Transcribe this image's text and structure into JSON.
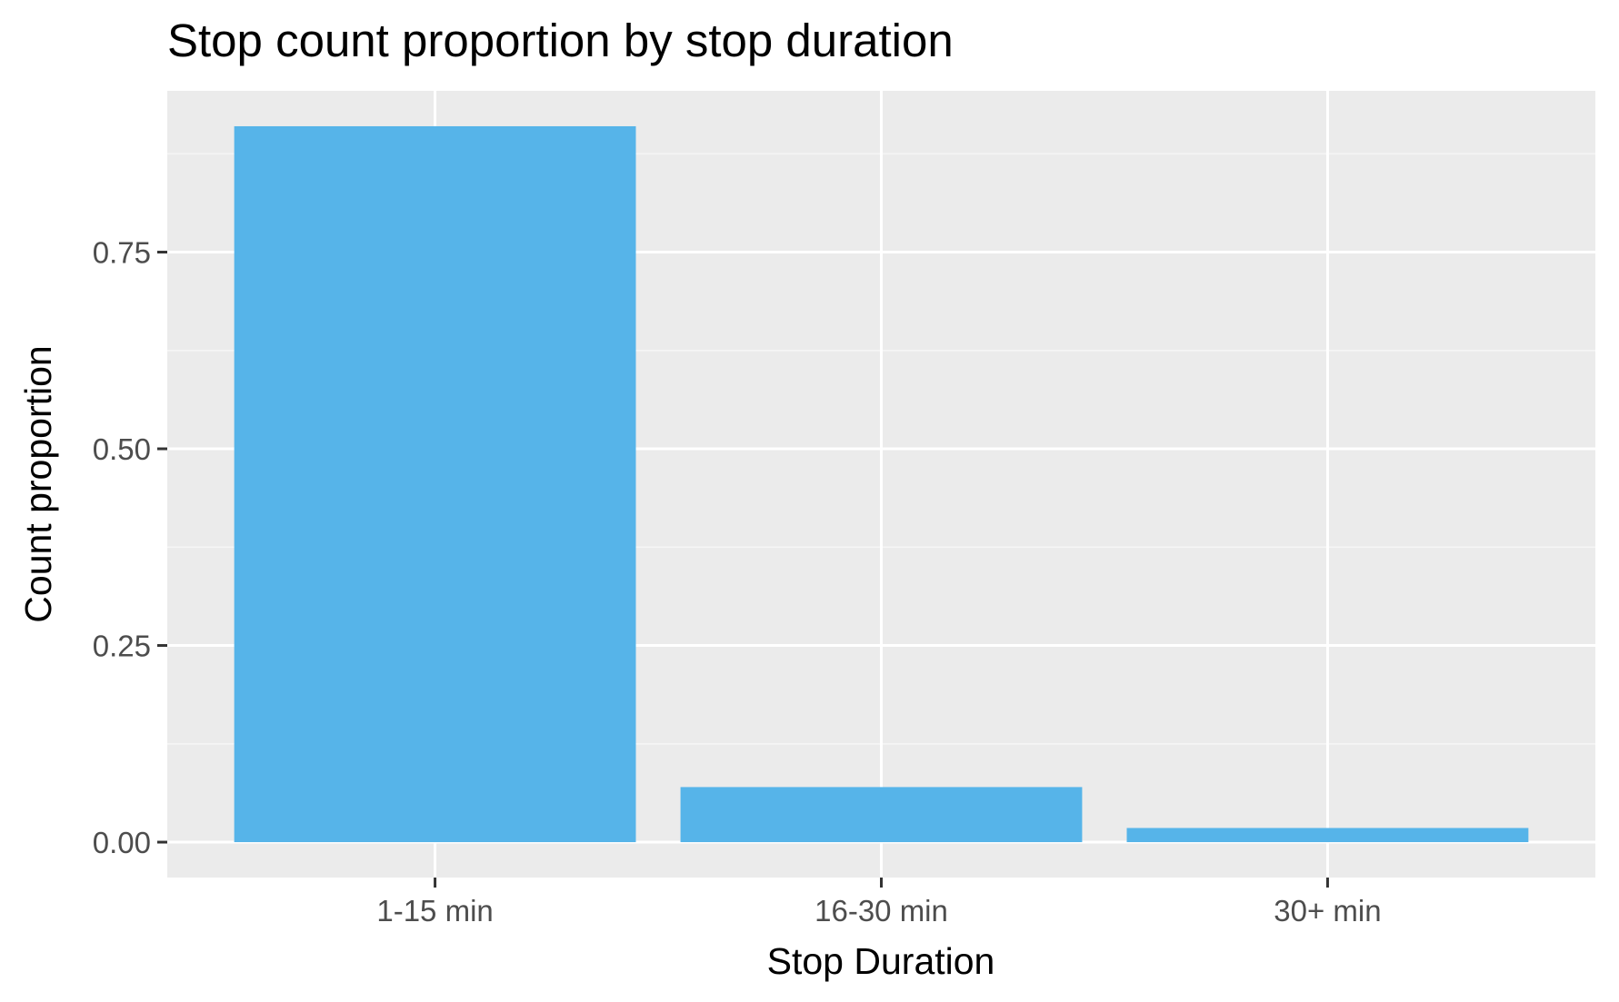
{
  "chart_data": {
    "type": "bar",
    "title": "Stop count proportion by stop duration",
    "xlabel": "Stop Duration",
    "ylabel": "Count proportion",
    "categories": [
      "1-15 min",
      "16-30 min",
      "30+ min"
    ],
    "values": [
      0.91,
      0.07,
      0.018
    ],
    "ylim": [
      -0.045,
      0.955
    ],
    "y_ticks": [
      0.0,
      0.25,
      0.5,
      0.75
    ],
    "y_tick_labels": [
      "0.00",
      "0.25",
      "0.50",
      "0.75"
    ],
    "grid": true,
    "legend": "none",
    "colors": {
      "bar": "#56B4E9",
      "panel_background": "#EBEBEB",
      "grid_major": "#FFFFFF",
      "grid_minor": "#F5F5F5",
      "tick_text": "#4D4D4D",
      "tick_mark": "#333333"
    }
  }
}
